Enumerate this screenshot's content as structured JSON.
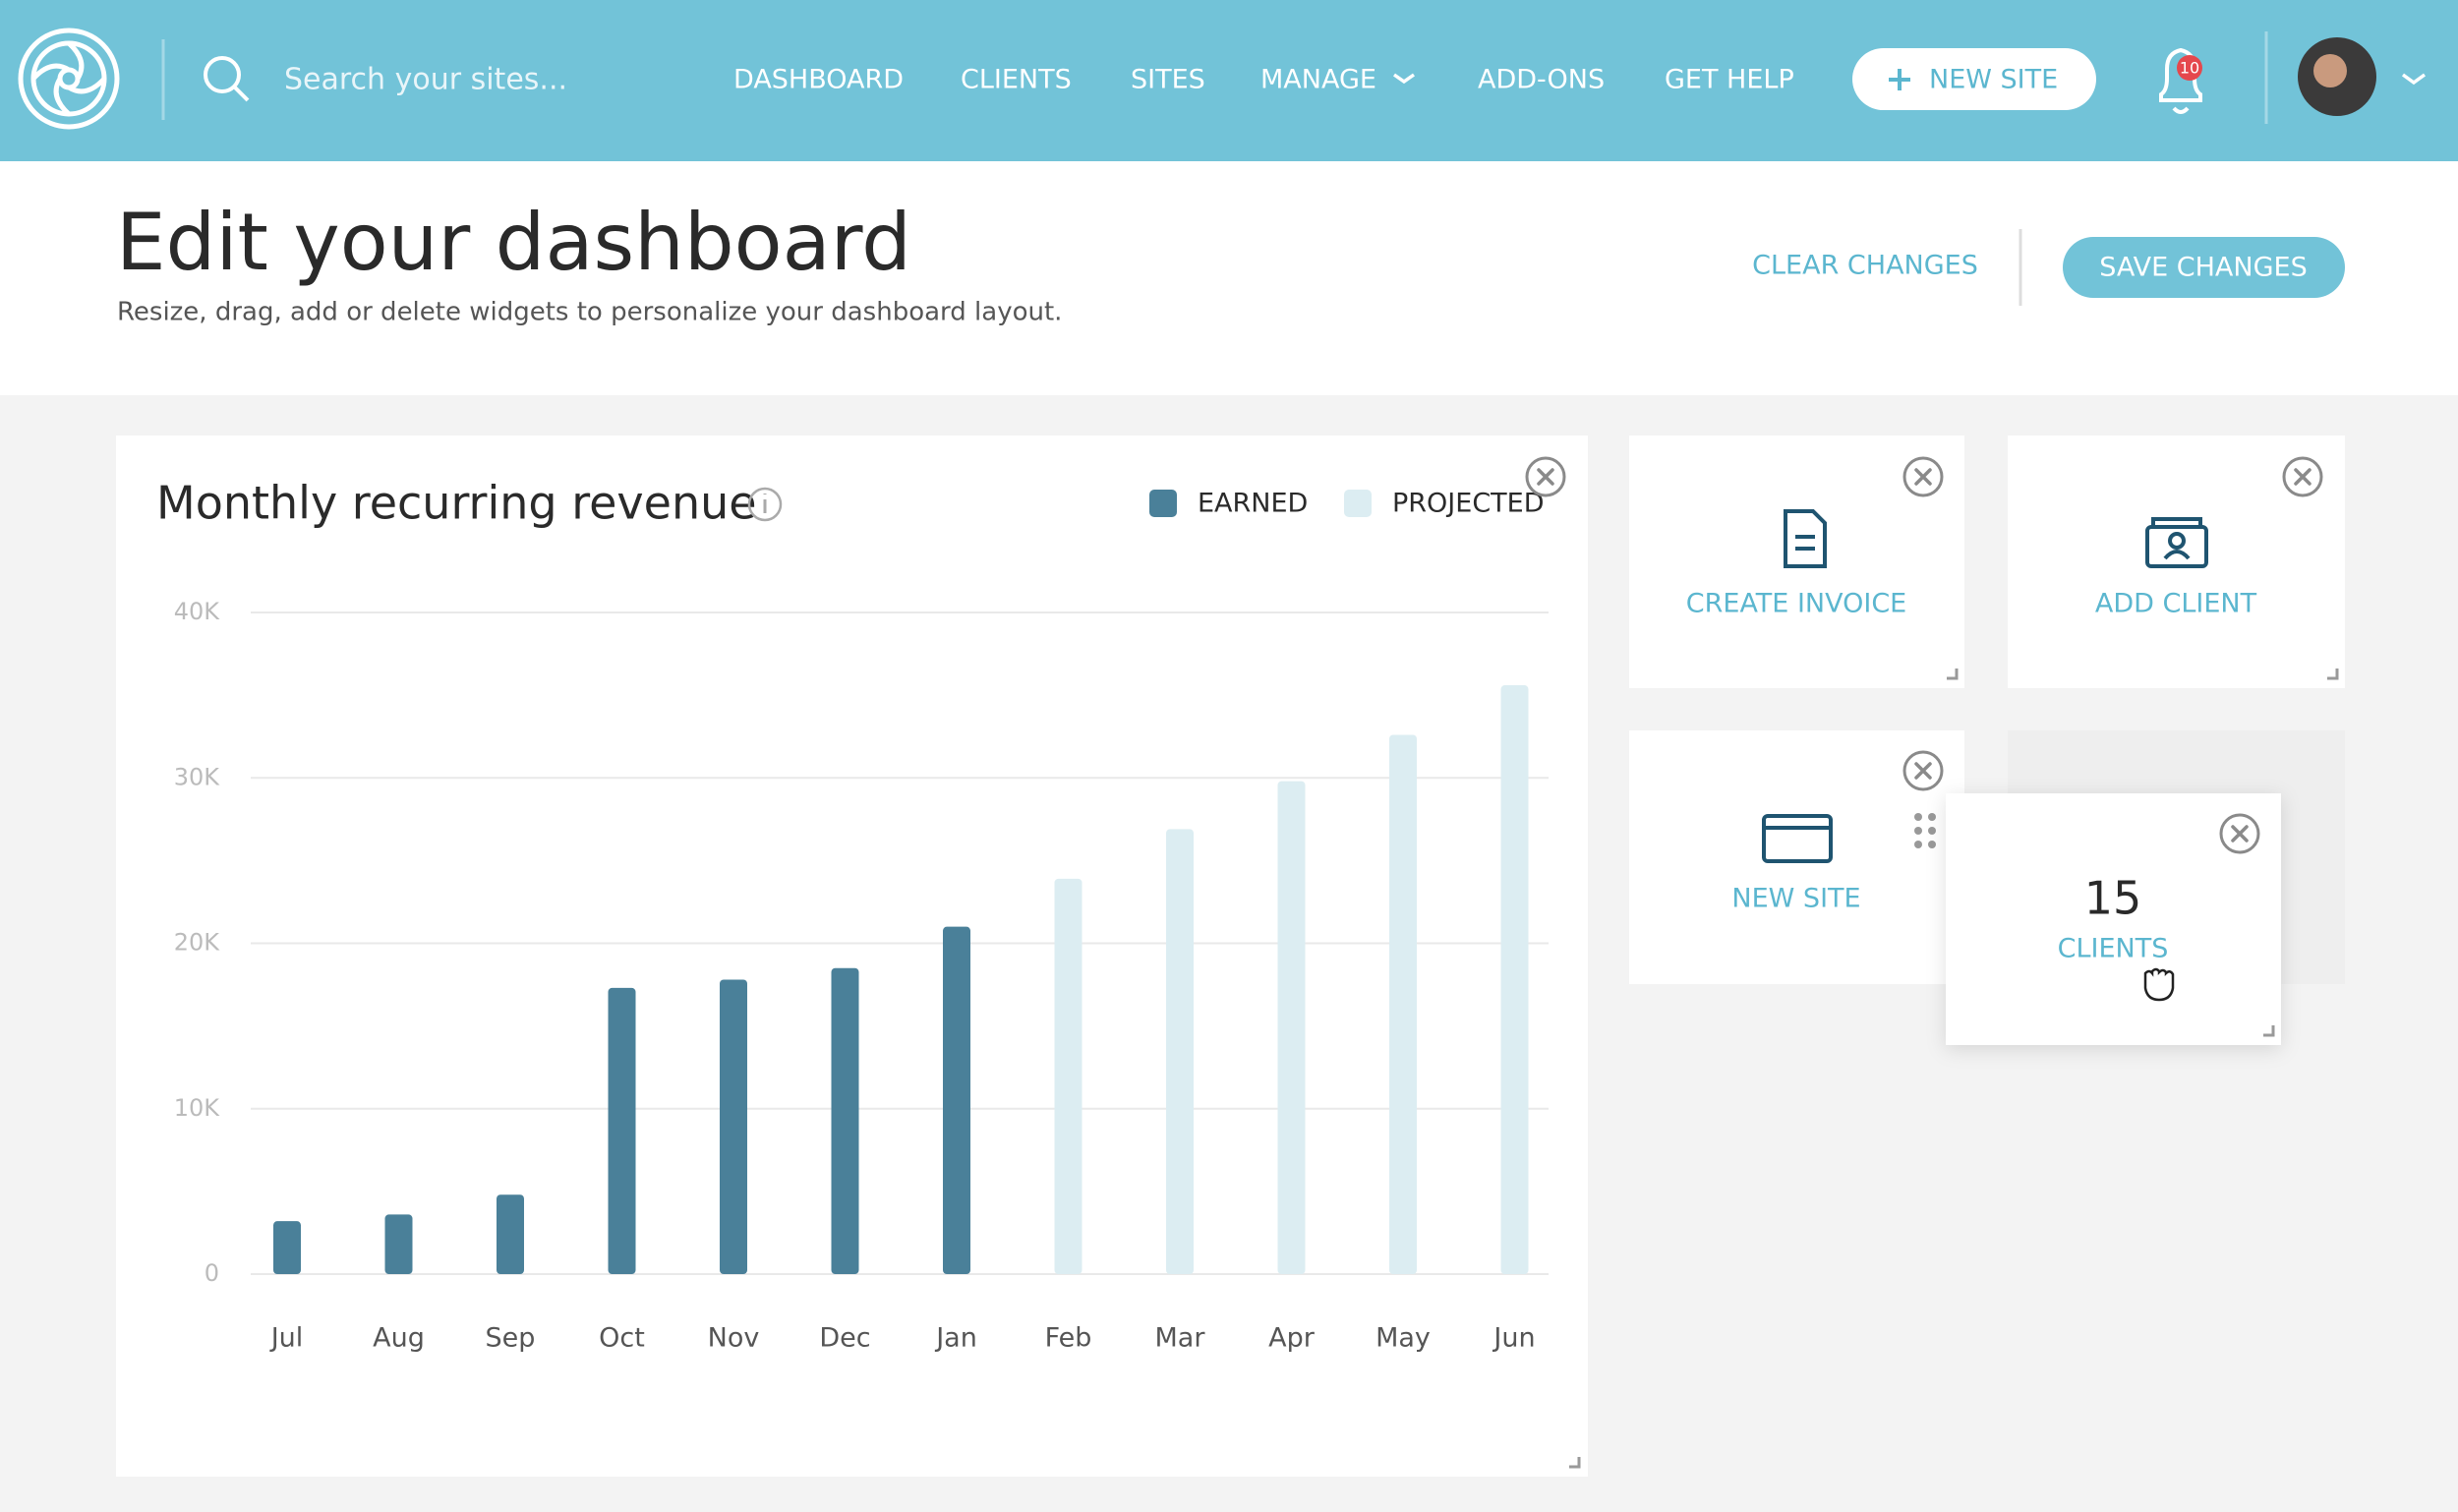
{
  "nav": {
    "search_placeholder": "Search your sites...",
    "items": [
      "DASHBOARD",
      "CLIENTS",
      "SITES",
      "MANAGE",
      "ADD-ONS",
      "GET HELP"
    ],
    "new_site_button": "NEW SITE",
    "notification_count": 10
  },
  "header": {
    "title": "Edit your dashboard",
    "subtitle": "Resize, drag, add or delete widgets to personalize your dashboard layout.",
    "clear_button": "CLEAR CHANGES",
    "save_button": "SAVE CHANGES"
  },
  "chart_data": {
    "type": "bar",
    "title": "Monthly recurring revenue",
    "categories": [
      "Jul",
      "Aug",
      "Sep",
      "Oct",
      "Nov",
      "Dec",
      "Jan",
      "Feb",
      "Mar",
      "Apr",
      "May",
      "Jun"
    ],
    "series": [
      {
        "name": "EARNED",
        "color": "#4a8099",
        "values": [
          3200,
          3600,
          4800,
          17300,
          17800,
          18500,
          21000,
          null,
          null,
          null,
          null,
          null
        ]
      },
      {
        "name": "PROJECTED",
        "color": "#dcedf2",
        "values": [
          null,
          null,
          null,
          null,
          null,
          null,
          null,
          23900,
          26900,
          29800,
          32600,
          35600
        ]
      }
    ],
    "ylim": [
      0,
      40000
    ],
    "yticks": [
      0,
      {
        "value": 10000,
        "label": "10K"
      },
      {
        "value": 20000,
        "label": "20K"
      },
      {
        "value": 30000,
        "label": "30K"
      },
      {
        "value": 40000,
        "label": "40K"
      }
    ],
    "grid": true,
    "legend": "top-right"
  },
  "widgets": [
    {
      "label": "CREATE INVOICE"
    },
    {
      "label": "ADD CLIENT"
    },
    {
      "label": "NEW SITE"
    },
    {
      "count": 15,
      "label": "CLIENTS"
    }
  ]
}
